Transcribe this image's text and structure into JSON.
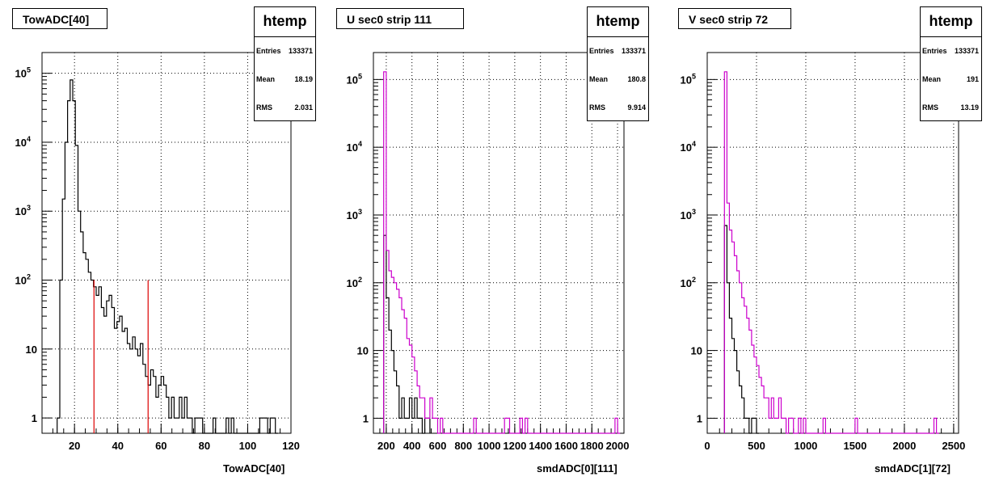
{
  "panels": [
    {
      "title": "TowADC[40]",
      "stats": {
        "name": "htemp",
        "entries_label": "Entries",
        "entries": "133371",
        "mean_label": "Mean",
        "mean": "18.19",
        "rms_label": "RMS",
        "rms": "2.031"
      },
      "xtitle": "TowADC[40]",
      "xticks": [
        "20",
        "40",
        "60",
        "80",
        "100",
        "120"
      ],
      "yticks": [
        "10^5",
        "10^4",
        "10^3",
        "10^2",
        "10",
        "1"
      ]
    },
    {
      "title": "U sec0 strip 111",
      "stats": {
        "name": "htemp",
        "entries_label": "Entries",
        "entries": "133371",
        "mean_label": "Mean",
        "mean": "180.8",
        "rms_label": "RMS",
        "rms": "9.914"
      },
      "xtitle": "smdADC[0][111]",
      "xticks": [
        "200",
        "400",
        "600",
        "800",
        "1000",
        "1200",
        "1400",
        "1600",
        "1800",
        "2000"
      ],
      "yticks": [
        "10^5",
        "10^4",
        "10^3",
        "10^2",
        "10",
        "1"
      ]
    },
    {
      "title": "V sec0 strip 72",
      "stats": {
        "name": "htemp",
        "entries_label": "Entries",
        "entries": "133371",
        "mean_label": "Mean",
        "mean": "191",
        "rms_label": "RMS",
        "rms": "13.19"
      },
      "xtitle": "smdADC[1][72]",
      "xticks": [
        "0",
        "500",
        "1000",
        "1500",
        "2000",
        "2500"
      ],
      "yticks": [
        "10^5",
        "10^4",
        "10^3",
        "10^2",
        "10",
        "1"
      ]
    }
  ],
  "colors": {
    "main": "#000000",
    "cut_line": "#dd0000",
    "overlay": "#cc00cc",
    "grid": "#000000"
  },
  "chart_data": [
    {
      "type": "histogram",
      "title": "TowADC[40]",
      "xlabel": "TowADC[40]",
      "xlim": [
        5,
        120
      ],
      "ylog": true,
      "ylim": [
        0.6,
        200000
      ],
      "grid": true,
      "legend": "top-right",
      "bin_width": 1.2,
      "series": [
        {
          "x": [
            12.6,
            13.8,
            15,
            16.2,
            17.4,
            18.6,
            19.8,
            21,
            22.2,
            23.4,
            24.6,
            25.8,
            27,
            28.2,
            29.4,
            30.6,
            31.8,
            33,
            34.2,
            35.4,
            36.6,
            37.8,
            39,
            40.2,
            41.4,
            42.6,
            43.8,
            45,
            46.2,
            47.4,
            48.6,
            49.8,
            51,
            52.2,
            53.4,
            54.6,
            55.8,
            57,
            58.2,
            59.4,
            60.6,
            61.8,
            63,
            64.2,
            65.4,
            66.6,
            67.8,
            69,
            70.2,
            71.4,
            72.6,
            73.8,
            75,
            76.2,
            77.4,
            78.6,
            79.8,
            81,
            82.2,
            83.4,
            84.6,
            85.8,
            87,
            88.2,
            89.4,
            90.6,
            91.8,
            93,
            94.2,
            95.4,
            96.6,
            97.8,
            99,
            100.2,
            101.4,
            102.6,
            103.8,
            105,
            106.2,
            107.4,
            108.6,
            109.8,
            111,
            112.2,
            113.4
          ],
          "y": [
            1,
            100,
            1500,
            10000,
            40000,
            80000,
            40000,
            9000,
            1000,
            500,
            250,
            200,
            130,
            100,
            80,
            60,
            80,
            40,
            30,
            50,
            60,
            40,
            20,
            25,
            30,
            18,
            20,
            12,
            10,
            15,
            10,
            8,
            12,
            6,
            4,
            3,
            5,
            4,
            2,
            3,
            4,
            3,
            2,
            1,
            2,
            1,
            1,
            2,
            1,
            2,
            1,
            1,
            0,
            1,
            1,
            1,
            0,
            0,
            0,
            0,
            1,
            0,
            0,
            0,
            0,
            1,
            0,
            1,
            0,
            0,
            0,
            0,
            0,
            0,
            0,
            0,
            0,
            0,
            1,
            1,
            1,
            0,
            1,
            1,
            0
          ]
        }
      ],
      "cut_lines": [
        {
          "x": 29,
          "y": 100
        },
        {
          "x": 54,
          "y": 100
        }
      ]
    },
    {
      "type": "histogram",
      "title": "U sec0 strip 111",
      "xlabel": "smdADC[0][111]",
      "xlim": [
        100,
        2050
      ],
      "ylog": true,
      "ylim": [
        0.6,
        250000
      ],
      "grid": true,
      "legend": "top-right",
      "bin_width": 20,
      "series": [
        {
          "x": [
            190,
            210,
            230,
            250,
            270,
            290,
            310,
            330,
            350,
            370,
            390,
            410,
            430,
            450,
            470,
            490,
            510,
            530
          ],
          "y": [
            500,
            60,
            20,
            10,
            5,
            3,
            1,
            2,
            1,
            1,
            2,
            1,
            2,
            1,
            1,
            0,
            1,
            1
          ]
        },
        {
          "x": [
            190,
            210,
            230,
            250,
            270,
            290,
            310,
            330,
            350,
            370,
            390,
            410,
            430,
            450,
            470,
            490,
            510,
            530,
            550,
            570,
            590,
            610,
            630,
            650,
            670,
            690,
            710,
            730,
            750,
            770,
            790,
            810,
            830,
            850,
            870,
            890,
            910,
            930,
            950,
            970,
            990,
            1010,
            1030,
            1050,
            1070,
            1090,
            1110,
            1130,
            1150,
            1170,
            1190,
            1210,
            1230,
            1250,
            1270,
            1290,
            1310,
            1330,
            1350,
            1370,
            1390,
            1410,
            1430,
            1450,
            1470,
            1490,
            1510,
            1530,
            1550,
            1570,
            1590,
            1610,
            1630,
            1650,
            1670,
            1690,
            1710,
            1730,
            1750,
            1770,
            1790,
            1810,
            1830,
            1850,
            1870,
            1890,
            1910,
            1930,
            1950,
            1970,
            1990,
            2010
          ],
          "y": [
            130000,
            300,
            150,
            120,
            100,
            80,
            60,
            40,
            30,
            15,
            12,
            8,
            5,
            3,
            2,
            2,
            1,
            1,
            2,
            1,
            1,
            0,
            1,
            0,
            0,
            0,
            0,
            0,
            0,
            0,
            0,
            0,
            0,
            0,
            0,
            1,
            0,
            0,
            0,
            0,
            0,
            0,
            0,
            0,
            0,
            0,
            0,
            1,
            1,
            0,
            0,
            0,
            0,
            1,
            0,
            1,
            0,
            0,
            0,
            0,
            0,
            0,
            0,
            0,
            0,
            0,
            0,
            0,
            0,
            0,
            0,
            0,
            0,
            0,
            0,
            0,
            0,
            0,
            0,
            0,
            0,
            0,
            0,
            0,
            0,
            0,
            0,
            0,
            0,
            0,
            1,
            0
          ]
        }
      ]
    },
    {
      "type": "histogram",
      "title": "V sec0 strip 72",
      "xlabel": "smdADC[1][72]",
      "xlim": [
        0,
        2550
      ],
      "ylog": true,
      "ylim": [
        0.6,
        250000
      ],
      "grid": true,
      "legend": "top-right",
      "bin_width": 25,
      "series": [
        {
          "x": [
            187.5,
            212.5,
            237.5,
            262.5,
            287.5,
            312.5,
            337.5,
            362.5,
            387.5,
            412.5,
            437.5,
            462.5,
            487.5,
            512.5
          ],
          "y": [
            700,
            100,
            30,
            15,
            10,
            5,
            3,
            2,
            1,
            1,
            0,
            1,
            1,
            0
          ]
        },
        {
          "x": [
            187.5,
            212.5,
            237.5,
            262.5,
            287.5,
            312.5,
            337.5,
            362.5,
            387.5,
            412.5,
            437.5,
            462.5,
            487.5,
            512.5,
            537.5,
            562.5,
            587.5,
            612.5,
            637.5,
            662.5,
            687.5,
            712.5,
            737.5,
            762.5,
            787.5,
            812.5,
            837.5,
            862.5,
            887.5,
            912.5,
            937.5,
            962.5,
            987.5,
            1012.5,
            1037.5,
            1062.5,
            1087.5,
            1112.5,
            1137.5,
            1162.5,
            1187.5,
            1212.5,
            1237.5,
            1262.5,
            1287.5,
            1312.5,
            1337.5,
            1362.5,
            1387.5,
            1412.5,
            1437.5,
            1462.5,
            1487.5,
            1512.5,
            1537.5,
            1562.5,
            1587.5,
            1612.5,
            1637.5,
            1662.5,
            1687.5,
            1712.5,
            1737.5,
            1762.5,
            1787.5,
            1812.5,
            1837.5,
            1862.5,
            1887.5,
            1912.5,
            1937.5,
            1962.5,
            1987.5,
            2012.5,
            2037.5,
            2062.5,
            2087.5,
            2112.5,
            2137.5,
            2162.5,
            2187.5,
            2212.5,
            2237.5,
            2262.5,
            2287.5,
            2312.5,
            2337.5
          ],
          "y": [
            130000,
            1500,
            600,
            400,
            250,
            150,
            100,
            60,
            45,
            30,
            20,
            12,
            8,
            6,
            4,
            3,
            2,
            2,
            1,
            2,
            1,
            1,
            2,
            1,
            1,
            0,
            1,
            1,
            0,
            0,
            1,
            0,
            1,
            0,
            0,
            0,
            0,
            0,
            0,
            0,
            1,
            0,
            0,
            0,
            0,
            0,
            0,
            0,
            0,
            0,
            0,
            0,
            0,
            1,
            0,
            0,
            0,
            0,
            0,
            0,
            0,
            0,
            0,
            0,
            0,
            0,
            0,
            0,
            0,
            0,
            0,
            0,
            0,
            0,
            0,
            0,
            0,
            0,
            0,
            0,
            0,
            0,
            0,
            0,
            0,
            1,
            0
          ]
        }
      ]
    }
  ]
}
